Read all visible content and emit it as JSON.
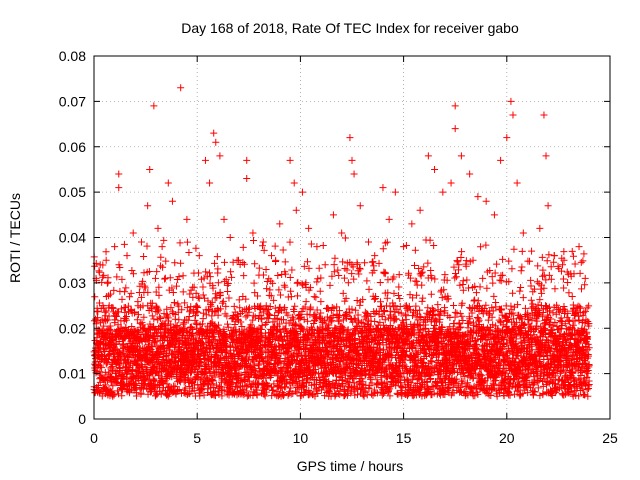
{
  "chart_data": {
    "type": "scatter",
    "title": "Day 168 of 2018, Rate Of TEC Index for receiver gabo",
    "xlabel": "GPS time / hours",
    "ylabel": "ROTI / TECUs",
    "xlim": [
      0,
      25
    ],
    "ylim": [
      0,
      0.08
    ],
    "xticks": [
      0,
      5,
      10,
      15,
      20,
      25
    ],
    "yticks": [
      0,
      0.01,
      0.02,
      0.03,
      0.04,
      0.05,
      0.06,
      0.07,
      0.08
    ],
    "xtick_labels": [
      "0",
      "5",
      "10",
      "15",
      "20",
      "25"
    ],
    "ytick_labels": [
      "0",
      "0.01",
      "0.02",
      "0.03",
      "0.04",
      "0.05",
      "0.06",
      "0.07",
      "0.08"
    ],
    "grid": true,
    "marker": "+",
    "color": "#ff0000",
    "data_x_range": [
      0,
      24
    ],
    "series": [
      {
        "name": "ROTI",
        "points": [
          [
            0.1,
            0.031
          ],
          [
            0.3,
            0.034
          ],
          [
            0.6,
            0.027
          ],
          [
            1.0,
            0.038
          ],
          [
            1.2,
            0.051
          ],
          [
            1.2,
            0.054
          ],
          [
            1.6,
            0.036
          ],
          [
            1.9,
            0.041
          ],
          [
            2.3,
            0.039
          ],
          [
            2.6,
            0.047
          ],
          [
            2.7,
            0.055
          ],
          [
            2.9,
            0.069
          ],
          [
            3.1,
            0.042
          ],
          [
            3.3,
            0.038
          ],
          [
            3.6,
            0.052
          ],
          [
            3.8,
            0.048
          ],
          [
            4.2,
            0.073
          ],
          [
            4.5,
            0.044
          ],
          [
            5.1,
            0.036
          ],
          [
            5.4,
            0.057
          ],
          [
            5.6,
            0.052
          ],
          [
            5.8,
            0.063
          ],
          [
            5.9,
            0.061
          ],
          [
            6.1,
            0.058
          ],
          [
            6.3,
            0.044
          ],
          [
            6.6,
            0.04
          ],
          [
            7.0,
            0.035
          ],
          [
            7.4,
            0.057
          ],
          [
            7.4,
            0.053
          ],
          [
            7.7,
            0.041
          ],
          [
            8.2,
            0.039
          ],
          [
            8.6,
            0.036
          ],
          [
            9.0,
            0.043
          ],
          [
            9.5,
            0.057
          ],
          [
            9.7,
            0.052
          ],
          [
            9.8,
            0.046
          ],
          [
            10.1,
            0.05
          ],
          [
            10.4,
            0.042
          ],
          [
            10.8,
            0.038
          ],
          [
            11.2,
            0.034
          ],
          [
            11.6,
            0.045
          ],
          [
            12.0,
            0.041
          ],
          [
            12.4,
            0.062
          ],
          [
            12.5,
            0.057
          ],
          [
            12.6,
            0.054
          ],
          [
            12.9,
            0.047
          ],
          [
            13.3,
            0.039
          ],
          [
            13.6,
            0.036
          ],
          [
            14.0,
            0.051
          ],
          [
            14.3,
            0.044
          ],
          [
            14.6,
            0.05
          ],
          [
            15.0,
            0.038
          ],
          [
            15.4,
            0.043
          ],
          [
            15.8,
            0.046
          ],
          [
            16.2,
            0.058
          ],
          [
            16.5,
            0.055
          ],
          [
            16.9,
            0.05
          ],
          [
            17.3,
            0.052
          ],
          [
            17.5,
            0.069
          ],
          [
            17.5,
            0.064
          ],
          [
            17.8,
            0.058
          ],
          [
            18.2,
            0.054
          ],
          [
            18.6,
            0.049
          ],
          [
            19.0,
            0.048
          ],
          [
            19.4,
            0.045
          ],
          [
            19.7,
            0.057
          ],
          [
            20.0,
            0.062
          ],
          [
            20.2,
            0.07
          ],
          [
            20.3,
            0.067
          ],
          [
            20.5,
            0.052
          ],
          [
            20.8,
            0.041
          ],
          [
            21.2,
            0.037
          ],
          [
            21.6,
            0.042
          ],
          [
            21.8,
            0.067
          ],
          [
            21.9,
            0.058
          ],
          [
            22.0,
            0.047
          ],
          [
            22.3,
            0.036
          ],
          [
            22.7,
            0.034
          ],
          [
            23.1,
            0.032
          ],
          [
            23.5,
            0.038
          ],
          [
            23.8,
            0.031
          ]
        ]
      }
    ]
  }
}
